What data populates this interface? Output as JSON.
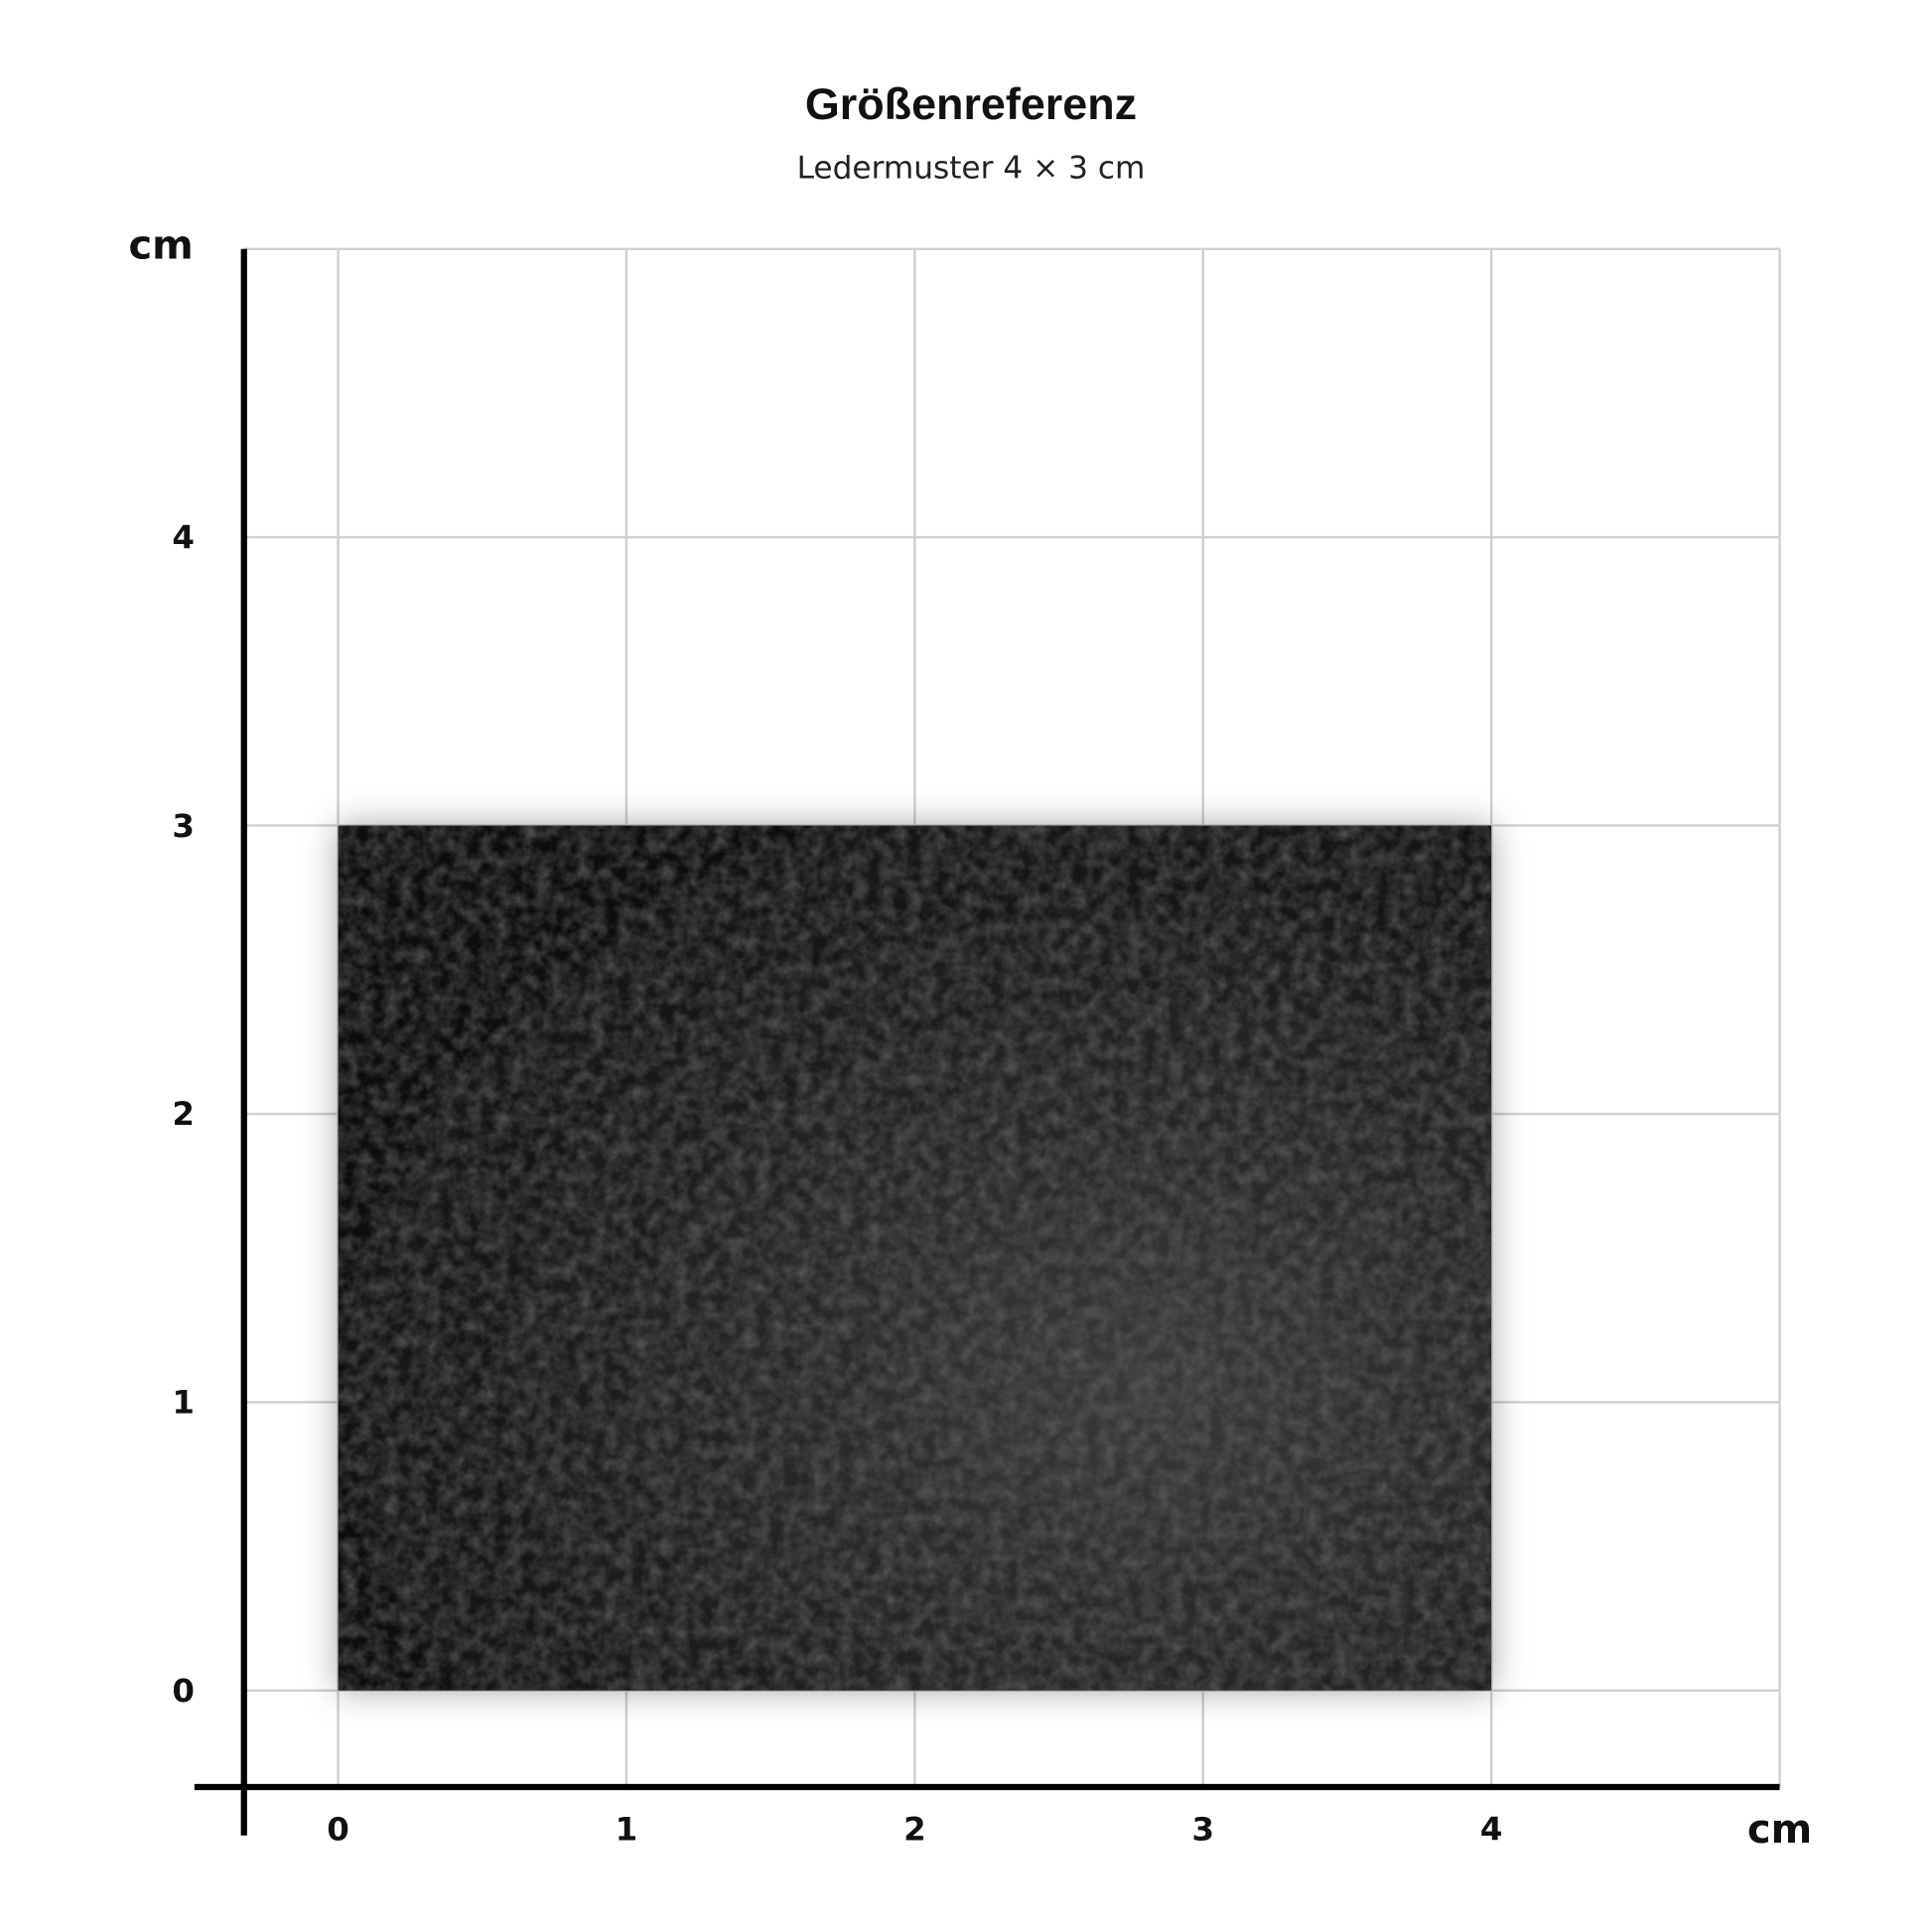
{
  "title": "Größenreferenz",
  "subtitle": "Ledermuster 4 × 3 cm",
  "chart_data": {
    "type": "diagram",
    "x_unit": "cm",
    "y_unit": "cm",
    "x_ticks": [
      "0",
      "1",
      "2",
      "3",
      "4"
    ],
    "y_ticks": [
      "0",
      "1",
      "2",
      "3",
      "4"
    ],
    "xlim": [
      0,
      5
    ],
    "ylim": [
      0,
      5
    ],
    "grid": true,
    "sample": {
      "width": 4,
      "height": 3,
      "material": "leather",
      "color": "#1a1a1a"
    }
  },
  "colors": {
    "grid": "#d0d0d0",
    "axis": "#000000",
    "sample": "#1a1a1a"
  }
}
